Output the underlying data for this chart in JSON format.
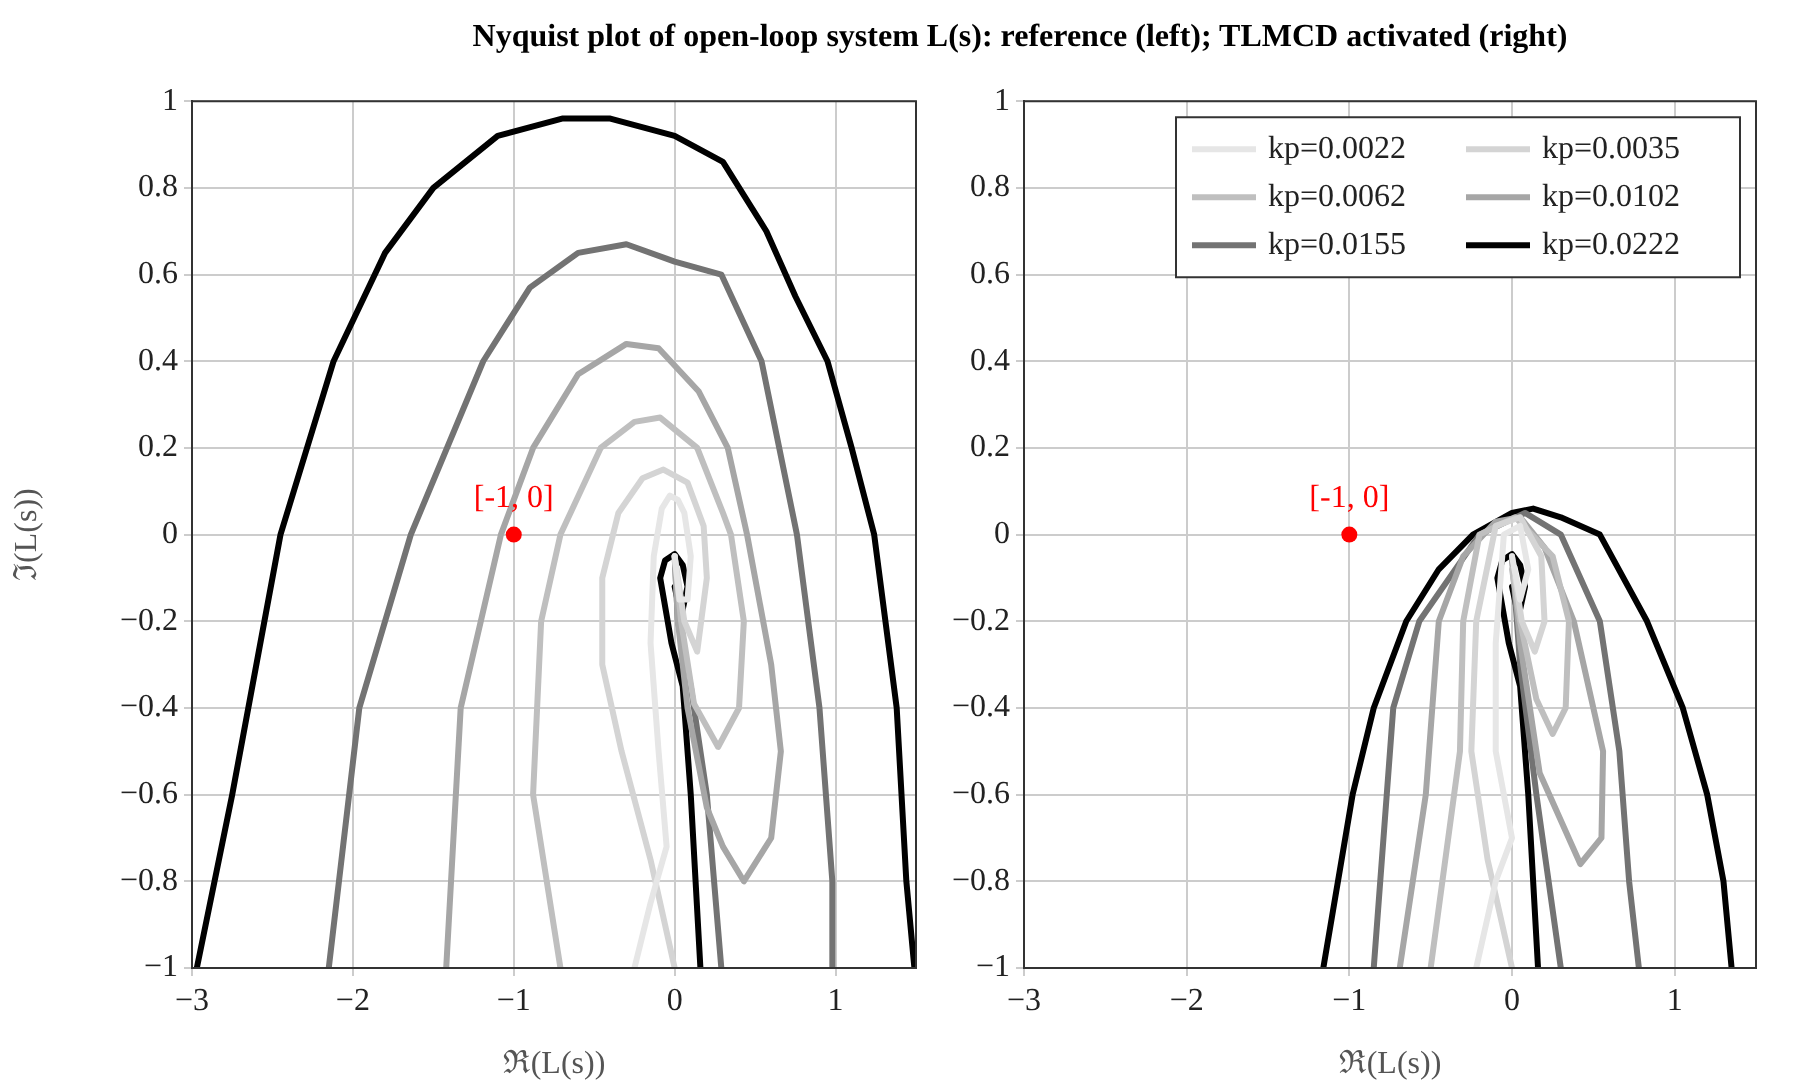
{
  "chart_data": [
    {
      "type": "line",
      "title": "Nyquist plot of open-loop system L(s):  reference (left); TLMCD activated (right)",
      "xlabel": "ℜ(L(s))",
      "ylabel": "ℑ(L(s))",
      "xlim": [
        -3,
        1.5
      ],
      "ylim": [
        -1,
        1
      ],
      "xticks": [
        {
          "value": -3,
          "label": "−3"
        },
        {
          "value": -2,
          "label": "−2"
        },
        {
          "value": -1,
          "label": "−1"
        },
        {
          "value": 0,
          "label": "0"
        },
        1
      ],
      "yticks": [
        {
          "value": -1,
          "label": "−1"
        },
        {
          "value": -0.8,
          "label": "−0.8"
        },
        {
          "value": -0.6,
          "label": "−0.6"
        },
        {
          "value": -0.4,
          "label": "−0.4"
        },
        {
          "value": -0.2,
          "label": "−0.2"
        },
        {
          "value": 0,
          "label": "0"
        },
        0.2,
        0.4,
        0.6,
        0.8,
        1
      ],
      "grid": true,
      "legend": false,
      "marker": "none",
      "line_style": "solid",
      "annotations": [
        {
          "text": "[-1, 0]",
          "x": -1,
          "y": 0
        }
      ],
      "series": [
        {
          "color": "#e6e6e6",
          "x": [
            -0.25,
            -0.15,
            -0.05,
            -0.1,
            -0.15,
            -0.13,
            -0.08,
            -0.03,
            0.02,
            0.06,
            0.1,
            0.08,
            0.03,
            0
          ],
          "values": [
            -1,
            -0.85,
            -0.72,
            -0.5,
            -0.25,
            -0.05,
            0.06,
            0.09,
            0.08,
            0.05,
            -0.05,
            -0.15,
            -0.15,
            -0.05
          ]
        },
        {
          "color": "#d4d4d4",
          "x": [
            0,
            -0.15,
            -0.33,
            -0.45,
            -0.45,
            -0.35,
            -0.2,
            -0.07,
            0.08,
            0.18,
            0.2,
            0.14,
            0.06,
            0.02,
            0
          ],
          "values": [
            -1,
            -0.75,
            -0.5,
            -0.3,
            -0.1,
            0.05,
            0.13,
            0.15,
            0.12,
            0.02,
            -0.1,
            -0.27,
            -0.2,
            -0.1,
            -0.05
          ]
        },
        {
          "color": "#bfbfbf",
          "x": [
            -0.71,
            -0.88,
            -0.83,
            -0.71,
            -0.46,
            -0.25,
            -0.09,
            0.14,
            0.3,
            0.35,
            0.43,
            0.4,
            0.27,
            0.12,
            0.04,
            0
          ],
          "values": [
            -1,
            -0.6,
            -0.2,
            0,
            0.2,
            0.26,
            0.27,
            0.2,
            0.05,
            0,
            -0.2,
            -0.4,
            -0.49,
            -0.39,
            -0.2,
            -0.05
          ]
        },
        {
          "color": "#a6a6a6",
          "x": [
            -1.42,
            -1.33,
            -1.08,
            -0.88,
            -0.6,
            -0.3,
            -0.1,
            0.15,
            0.33,
            0.45,
            0.6,
            0.66,
            0.6,
            0.43,
            0.3,
            0.2,
            0.08,
            0.02,
            0
          ],
          "values": [
            -1,
            -0.4,
            0,
            0.2,
            0.37,
            0.44,
            0.43,
            0.33,
            0.2,
            0,
            -0.3,
            -0.5,
            -0.7,
            -0.8,
            -0.72,
            -0.63,
            -0.4,
            -0.2,
            -0.05
          ]
        },
        {
          "color": "#737373",
          "x": [
            -2.15,
            -1.96,
            -1.64,
            -1.19,
            -0.9,
            -0.6,
            -0.3,
            0,
            0.29,
            0.54,
            0.76,
            0.9,
            0.98,
            0.98
          ],
          "values": [
            -1,
            -0.4,
            0,
            0.4,
            0.57,
            0.65,
            0.67,
            0.63,
            0.6,
            0.4,
            0,
            -0.4,
            -0.8,
            -1
          ]
        },
        {
          "color": "#737373",
          "x": [
            0.29,
            0.2,
            0.1,
            0.02,
            0
          ],
          "values": [
            -1,
            -0.6,
            -0.35,
            -0.2,
            -0.05
          ]
        },
        {
          "color": "#000000",
          "x": [
            -2.97,
            -2.75,
            -2.45,
            -2.12,
            -1.8,
            -1.5,
            -1.1,
            -0.7,
            -0.4,
            0,
            0.3,
            0.57,
            0.75,
            0.95,
            1.1,
            1.24,
            1.38,
            1.44,
            1.49
          ],
          "values": [
            -1,
            -0.6,
            0,
            0.4,
            0.65,
            0.8,
            0.92,
            0.96,
            0.96,
            0.92,
            0.86,
            0.7,
            0.55,
            0.4,
            0.2,
            0,
            -0.4,
            -0.8,
            -1
          ]
        },
        {
          "color": "#000000",
          "x": [
            0.16,
            0.1,
            0.05,
            -0.02,
            -0.09,
            -0.06,
            0,
            0.05,
            0.08,
            0.04,
            0
          ],
          "values": [
            -1,
            -0.6,
            -0.35,
            -0.25,
            -0.1,
            -0.06,
            -0.045,
            -0.07,
            -0.12,
            -0.19,
            -0.12
          ]
        },
        {
          "type": "scatter",
          "color": "#ff0000",
          "marker": "circle",
          "x": [
            -1
          ],
          "values": [
            0
          ]
        }
      ]
    },
    {
      "type": "line",
      "xlabel": "ℜ(L(s))",
      "xlim": [
        -3,
        1.5
      ],
      "ylim": [
        -1,
        1
      ],
      "xticks": [
        {
          "value": -3,
          "label": "−3"
        },
        {
          "value": -2,
          "label": "−2"
        },
        {
          "value": -1,
          "label": "−1"
        },
        {
          "value": 0,
          "label": "0"
        },
        1
      ],
      "yticks": [
        {
          "value": -1,
          "label": "−1"
        },
        {
          "value": -0.8,
          "label": "−0.8"
        },
        {
          "value": -0.6,
          "label": "−0.6"
        },
        {
          "value": -0.4,
          "label": "−0.4"
        },
        {
          "value": -0.2,
          "label": "−0.2"
        },
        {
          "value": 0,
          "label": "0"
        },
        0.2,
        0.4,
        0.6,
        0.8,
        1
      ],
      "grid": true,
      "legend": "top right",
      "marker": "none",
      "line_style": "solid",
      "annotations": [
        {
          "text": "[-1, 0]",
          "x": -1,
          "y": 0
        }
      ],
      "series": [
        {
          "name": "kp=0.0022",
          "color": "#e6e6e6",
          "x": [
            -0.22,
            -0.1,
            0,
            -0.1,
            -0.1,
            -0.05,
            0.05,
            0.1,
            0.05,
            0
          ],
          "values": [
            -1,
            -0.8,
            -0.7,
            -0.5,
            -0.25,
            0,
            0.02,
            -0.08,
            -0.15,
            -0.05
          ]
        },
        {
          "name": "kp=0.0035",
          "color": "#d4d4d4",
          "x": [
            0,
            -0.15,
            -0.25,
            -0.22,
            -0.1,
            0.05,
            0.18,
            0.2,
            0.14,
            0.06,
            0.02
          ],
          "values": [
            -1,
            -0.75,
            -0.5,
            -0.2,
            0.02,
            0.04,
            -0.05,
            -0.2,
            -0.27,
            -0.2,
            -0.1
          ]
        },
        {
          "name": "kp=0.0062",
          "color": "#bfbfbf",
          "x": [
            -0.5,
            -0.32,
            -0.3,
            -0.2,
            0.02,
            0.25,
            0.35,
            0.33,
            0.25,
            0.15,
            0.05,
            0
          ],
          "values": [
            -1,
            -0.5,
            -0.2,
            0,
            0.04,
            -0.05,
            -0.2,
            -0.4,
            -0.46,
            -0.38,
            -0.2,
            -0.08
          ]
        },
        {
          "name": "kp=0.0102",
          "color": "#a6a6a6",
          "x": [
            -0.69,
            -0.53,
            -0.45,
            -0.3,
            -0.1,
            0.05,
            0.2,
            0.38,
            0.56,
            0.55,
            0.42,
            0.17,
            0.05,
            0
          ],
          "values": [
            -1,
            -0.6,
            -0.2,
            -0.05,
            0.03,
            0.04,
            -0.03,
            -0.2,
            -0.5,
            -0.7,
            -0.76,
            -0.55,
            -0.25,
            -0.05
          ]
        },
        {
          "name": "kp=0.0155",
          "color": "#737373",
          "x": [
            -0.85,
            -0.73,
            -0.57,
            -0.2,
            0.08,
            0.3,
            0.54,
            0.66,
            0.72,
            0.78
          ],
          "values": [
            -1,
            -0.4,
            -0.2,
            0,
            0.05,
            0,
            -0.2,
            -0.5,
            -0.8,
            -1
          ]
        },
        {
          "color": "#737373",
          "x": [
            0.3,
            0.15,
            0.05,
            0
          ],
          "values": [
            -1,
            -0.6,
            -0.3,
            -0.05
          ]
        },
        {
          "name": "kp=0.0222",
          "color": "#000000",
          "x": [
            -1.16,
            -0.98,
            -0.85,
            -0.65,
            -0.45,
            -0.24,
            0,
            0.13,
            0.3,
            0.54,
            0.83,
            1.05,
            1.2,
            1.3,
            1.35
          ],
          "values": [
            -1,
            -0.6,
            -0.4,
            -0.2,
            -0.08,
            0,
            0.05,
            0.06,
            0.04,
            0,
            -0.2,
            -0.4,
            -0.6,
            -0.8,
            -1
          ]
        },
        {
          "color": "#000000",
          "x": [
            0.16,
            0.1,
            0.05,
            -0.02,
            -0.09,
            -0.06,
            0,
            0.05,
            0.08,
            0.04,
            0
          ],
          "values": [
            -1,
            -0.6,
            -0.35,
            -0.25,
            -0.1,
            -0.06,
            -0.045,
            -0.07,
            -0.12,
            -0.19,
            -0.12
          ]
        },
        {
          "type": "scatter",
          "color": "#ff0000",
          "marker": "circle",
          "x": [
            -1
          ],
          "values": [
            0
          ]
        }
      ]
    }
  ]
}
